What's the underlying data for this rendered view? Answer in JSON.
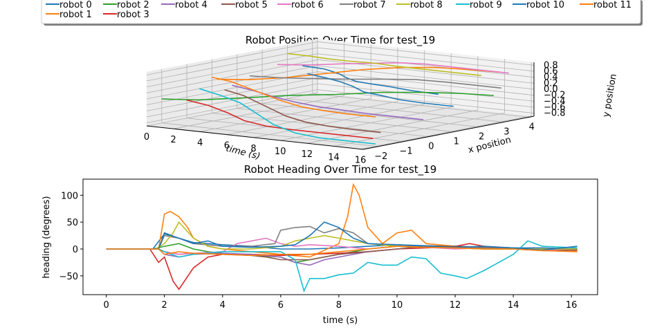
{
  "legend": {
    "entries": [
      {
        "label": "robot 0",
        "color": "#1f77b4"
      },
      {
        "label": "robot 1",
        "color": "#ff7f0e"
      },
      {
        "label": "robot 2",
        "color": "#2ca02c"
      },
      {
        "label": "robot 3",
        "color": "#d62728"
      },
      {
        "label": "robot 4",
        "color": "#9467bd"
      },
      {
        "label": "robot 5",
        "color": "#8c564b"
      },
      {
        "label": "robot 6",
        "color": "#e377c2"
      },
      {
        "label": "robot 7",
        "color": "#7f7f7f"
      },
      {
        "label": "robot 8",
        "color": "#bcbd22"
      },
      {
        "label": "robot 9",
        "color": "#17becf"
      },
      {
        "label": "robot 10",
        "color": "#1f77b4"
      },
      {
        "label": "robot 11",
        "color": "#ff7f0e"
      }
    ]
  },
  "chart_data": [
    {
      "type": "line",
      "projection": "3d",
      "title": "Robot Position Over Time for test_19",
      "xlabel": "time (s)",
      "ylabel": "x position",
      "zlabel": "y position",
      "time_ticks": [
        "0",
        "2",
        "4",
        "6",
        "8",
        "10",
        "12",
        "14",
        "16"
      ],
      "x_ticks": [
        "−2",
        "−1",
        "0",
        "1",
        "2",
        "3",
        "4"
      ],
      "y_ticks": [
        "−0.8",
        "−0.6",
        "−0.4",
        "−0.2",
        "0.0",
        "0.2",
        "0.4",
        "0.6",
        "0.8"
      ],
      "time_range": [
        0,
        16.2
      ],
      "x_range": [
        -2.6,
        4.2
      ],
      "y_range": [
        -0.9,
        0.9
      ],
      "grid": true,
      "series": [
        {
          "name": "robot 0",
          "color": "#1f77b4",
          "t": [
            0,
            2,
            4,
            6,
            8,
            10,
            12,
            14,
            16.2
          ],
          "x": [
            3.6,
            3.4,
            2.9,
            2.2,
            1.5,
            1.0,
            0.7,
            0.5,
            0.4
          ],
          "y": [
            0.1,
            0.12,
            0.15,
            0.2,
            0.3,
            0.4,
            0.45,
            0.45,
            0.45
          ]
        },
        {
          "name": "robot 1",
          "color": "#ff7f0e",
          "t": [
            0,
            2,
            4,
            6,
            8,
            10,
            12,
            14,
            16.2
          ],
          "x": [
            0.2,
            0.4,
            0.8,
            1.3,
            1.8,
            2.2,
            2.5,
            2.7,
            2.8
          ],
          "y": [
            0.2,
            0.25,
            0.35,
            0.5,
            0.65,
            0.75,
            0.8,
            0.8,
            0.8
          ]
        },
        {
          "name": "robot 2",
          "color": "#2ca02c",
          "t": [
            0,
            2,
            4,
            6,
            8,
            10,
            12,
            14,
            16.2
          ],
          "x": [
            -2.0,
            -1.6,
            -0.9,
            -0.1,
            0.7,
            1.4,
            2.0,
            2.4,
            2.6
          ],
          "y": [
            -0.1,
            -0.1,
            -0.05,
            0.0,
            0.0,
            0.05,
            0.05,
            0.05,
            0.05
          ]
        },
        {
          "name": "robot 3",
          "color": "#d62728",
          "t": [
            0,
            2,
            4,
            6,
            8,
            10,
            12,
            14,
            16.2
          ],
          "x": [
            -1.0,
            -1.2,
            -1.5,
            -1.9,
            -2.1,
            -2.2,
            -2.2,
            -2.2,
            -2.2
          ],
          "y": [
            -0.3,
            -0.35,
            -0.45,
            -0.55,
            -0.6,
            -0.6,
            -0.6,
            -0.6,
            -0.6
          ]
        },
        {
          "name": "robot 4",
          "color": "#9467bd",
          "t": [
            0,
            2,
            4,
            6,
            8,
            10,
            12,
            14,
            16.2
          ],
          "x": [
            0.8,
            0.6,
            0.3,
            0.1,
            0.0,
            -0.1,
            -0.2,
            -0.2,
            -0.2
          ],
          "y": [
            -0.1,
            -0.15,
            -0.2,
            -0.25,
            -0.3,
            -0.3,
            -0.3,
            -0.3,
            -0.3
          ]
        },
        {
          "name": "robot 5",
          "color": "#8c564b",
          "t": [
            0,
            2,
            4,
            6,
            8,
            10,
            12,
            14,
            16.2
          ],
          "x": [
            0.5,
            0.2,
            -0.3,
            -0.8,
            -1.3,
            -1.6,
            -1.8,
            -1.9,
            -1.9
          ],
          "y": [
            -0.2,
            -0.25,
            -0.3,
            -0.35,
            -0.4,
            -0.45,
            -0.45,
            -0.45,
            -0.45
          ]
        },
        {
          "name": "robot 6",
          "color": "#e377c2",
          "t": [
            0,
            2,
            4,
            6,
            8,
            10,
            12,
            14,
            16.2
          ],
          "x": [
            2.6,
            2.8,
            3.0,
            3.1,
            3.2,
            3.2,
            3.2,
            3.2,
            3.2
          ],
          "y": [
            0.3,
            0.35,
            0.45,
            0.55,
            0.65,
            0.7,
            0.7,
            0.7,
            0.7
          ]
        },
        {
          "name": "robot 7",
          "color": "#7f7f7f",
          "t": [
            0,
            2,
            4,
            6,
            8,
            10,
            12,
            14,
            16.2
          ],
          "x": [
            1.5,
            1.7,
            2.0,
            2.3,
            2.6,
            2.8,
            2.9,
            2.9,
            2.9
          ],
          "y": [
            0.1,
            0.1,
            0.12,
            0.15,
            0.2,
            0.25,
            0.25,
            0.25,
            0.25
          ]
        },
        {
          "name": "robot 8",
          "color": "#bcbd22",
          "t": [
            0,
            2,
            4,
            6,
            8,
            10,
            12,
            14,
            16.2
          ],
          "x": [
            3.0,
            2.8,
            2.5,
            2.3,
            2.2,
            2.1,
            2.1,
            2.1,
            2.1
          ],
          "y": [
            0.6,
            0.65,
            0.7,
            0.75,
            0.8,
            0.8,
            0.8,
            0.8,
            0.8
          ]
        },
        {
          "name": "robot 9",
          "color": "#17becf",
          "t": [
            0,
            2,
            4,
            6,
            8,
            10,
            12,
            14,
            16.2
          ],
          "x": [
            -0.5,
            -0.7,
            -1.0,
            -1.4,
            -1.8,
            -2.0,
            -2.1,
            -2.1,
            -2.1
          ],
          "y": [
            0.0,
            -0.1,
            -0.2,
            -0.4,
            -0.6,
            -0.75,
            -0.8,
            -0.8,
            -0.8
          ]
        },
        {
          "name": "robot 10",
          "color": "#1f77b4",
          "t": [
            0,
            2,
            4,
            6,
            8,
            10,
            12,
            14,
            16.2
          ],
          "x": [
            3.8,
            3.5,
            3.0,
            2.4,
            1.8,
            1.4,
            1.1,
            1.0,
            1.0
          ],
          "y": [
            -0.2,
            -0.2,
            -0.15,
            -0.1,
            -0.1,
            -0.05,
            -0.05,
            -0.05,
            -0.05
          ]
        },
        {
          "name": "robot 11",
          "color": "#ff7f0e",
          "t": [
            0,
            2,
            4,
            6,
            8,
            10,
            12,
            14,
            16.2
          ],
          "x": [
            0.0,
            -0.3,
            -0.7,
            -1.1,
            -1.5,
            -1.8,
            -2.0,
            -2.1,
            -2.1
          ],
          "y": [
            0.3,
            0.3,
            0.25,
            0.2,
            0.15,
            0.1,
            0.1,
            0.1,
            0.1
          ]
        }
      ]
    },
    {
      "type": "line",
      "title": "Robot Heading Over Time for test_19",
      "xlabel": "time (s)",
      "ylabel": "heading (degrees)",
      "xlim": [
        -0.8,
        16.9
      ],
      "ylim": [
        -85,
        130
      ],
      "xticks": [
        0,
        2,
        4,
        6,
        8,
        10,
        12,
        14,
        16
      ],
      "yticks": [
        -50,
        0,
        50,
        100
      ],
      "grid": false,
      "series": [
        {
          "name": "robot 0",
          "color": "#1f77b4",
          "x": [
            0,
            1.6,
            2.0,
            2.5,
            3.0,
            3.5,
            4.0,
            5.0,
            6.0,
            7.0,
            8.0,
            9.0,
            10.0,
            11.0,
            12.0,
            13.0,
            14.0,
            15.0,
            16.2
          ],
          "y": [
            0,
            0,
            28,
            20,
            12,
            10,
            8,
            5,
            0,
            0,
            2,
            5,
            8,
            6,
            5,
            3,
            2,
            2,
            0
          ]
        },
        {
          "name": "robot 1",
          "color": "#ff7f0e",
          "x": [
            0,
            1.8,
            2.0,
            2.2,
            2.5,
            2.8,
            3.0,
            3.5,
            4.0,
            5.0,
            6.0,
            7.0,
            8.0,
            8.3,
            8.5,
            8.7,
            9.0,
            9.5,
            10.0,
            10.5,
            11.0,
            12.0,
            13.0,
            14.0,
            15.0,
            16.2
          ],
          "y": [
            0,
            0,
            65,
            70,
            60,
            40,
            20,
            5,
            0,
            -5,
            -10,
            -15,
            10,
            60,
            120,
            100,
            40,
            10,
            30,
            35,
            10,
            5,
            0,
            0,
            -2,
            -3
          ]
        },
        {
          "name": "robot 2",
          "color": "#2ca02c",
          "x": [
            0,
            1.6,
            2.0,
            2.5,
            3.0,
            3.5,
            4.0,
            5.0,
            6.0,
            6.5,
            7.0,
            8.0,
            9.0,
            10.0,
            11.0,
            12.0,
            13.0,
            14.0,
            15.0,
            16.2
          ],
          "y": [
            0,
            0,
            5,
            10,
            0,
            -5,
            -8,
            -12,
            -15,
            -25,
            -20,
            -10,
            0,
            5,
            3,
            2,
            0,
            0,
            -2,
            0
          ]
        },
        {
          "name": "robot 3",
          "color": "#d62728",
          "x": [
            0,
            1.5,
            1.8,
            2.0,
            2.3,
            2.5,
            3.0,
            3.5,
            4.0,
            5.0,
            6.0,
            7.0,
            8.0,
            9.0,
            10.0,
            11.0,
            12.0,
            12.5,
            13.0,
            14.0,
            15.0,
            16.2
          ],
          "y": [
            0,
            0,
            -25,
            -15,
            -60,
            -75,
            -35,
            -15,
            -10,
            -10,
            -12,
            -10,
            -8,
            -5,
            0,
            2,
            5,
            10,
            5,
            0,
            -2,
            0
          ]
        },
        {
          "name": "robot 4",
          "color": "#9467bd",
          "x": [
            0,
            1.8,
            2.0,
            2.5,
            3.0,
            4.0,
            5.0,
            6.0,
            6.5,
            7.0,
            7.5,
            8.0,
            9.0,
            10.0,
            11.0,
            12.0,
            13.0,
            14.0,
            15.0,
            16.2
          ],
          "y": [
            0,
            0,
            -10,
            -15,
            -10,
            -8,
            -10,
            -15,
            -25,
            -30,
            -20,
            -15,
            -5,
            0,
            5,
            3,
            2,
            0,
            0,
            -2
          ]
        },
        {
          "name": "robot 5",
          "color": "#8c564b",
          "x": [
            0,
            1.8,
            2.0,
            2.5,
            3.0,
            4.0,
            5.0,
            5.5,
            6.0,
            7.0,
            8.0,
            9.0,
            10.0,
            11.0,
            12.0,
            13.0,
            14.0,
            15.0,
            16.2
          ],
          "y": [
            0,
            0,
            -5,
            -10,
            -8,
            -10,
            -12,
            -15,
            -20,
            -20,
            -10,
            -5,
            0,
            5,
            5,
            3,
            0,
            -3,
            -2
          ]
        },
        {
          "name": "robot 6",
          "color": "#e377c2",
          "x": [
            0,
            1.8,
            2.0,
            2.5,
            3.0,
            4.0,
            4.5,
            5.0,
            5.5,
            6.0,
            6.5,
            7.0,
            8.0,
            9.0,
            10.0,
            11.0,
            12.0,
            13.0,
            14.0,
            15.0,
            16.2
          ],
          "y": [
            0,
            0,
            -5,
            -10,
            -8,
            -5,
            10,
            15,
            20,
            10,
            5,
            8,
            5,
            0,
            5,
            3,
            0,
            2,
            0,
            -2,
            0
          ]
        },
        {
          "name": "robot 7",
          "color": "#7f7f7f",
          "x": [
            0,
            1.8,
            2.0,
            2.5,
            3.0,
            4.0,
            5.0,
            5.8,
            6.0,
            6.5,
            7.0,
            7.5,
            8.0,
            8.5,
            9.0,
            10.0,
            11.0,
            12.0,
            13.0,
            14.0,
            15.0,
            16.2
          ],
          "y": [
            0,
            0,
            25,
            20,
            10,
            5,
            5,
            10,
            35,
            40,
            42,
            30,
            38,
            30,
            10,
            5,
            5,
            3,
            2,
            0,
            0,
            0
          ]
        },
        {
          "name": "robot 8",
          "color": "#bcbd22",
          "x": [
            0,
            1.7,
            2.0,
            2.3,
            2.5,
            3.0,
            3.5,
            4.0,
            5.0,
            6.0,
            6.5,
            7.0,
            7.5,
            8.0,
            9.0,
            10.0,
            11.0,
            12.0,
            13.0,
            14.0,
            15.0,
            16.2
          ],
          "y": [
            0,
            0,
            10,
            30,
            50,
            20,
            5,
            0,
            0,
            5,
            15,
            20,
            25,
            20,
            10,
            5,
            3,
            2,
            0,
            0,
            0,
            0
          ]
        },
        {
          "name": "robot 9",
          "color": "#17becf",
          "x": [
            0,
            1.8,
            2.0,
            2.5,
            3.0,
            4.0,
            5.0,
            6.0,
            6.5,
            6.8,
            7.0,
            7.5,
            8.0,
            8.5,
            9.0,
            9.5,
            10.0,
            10.5,
            11.0,
            11.5,
            12.0,
            12.4,
            13.0,
            13.5,
            14.0,
            14.5,
            15.0,
            16.2
          ],
          "y": [
            0,
            0,
            -5,
            -15,
            -10,
            -5,
            -5,
            -5,
            -20,
            -78,
            -55,
            -55,
            -48,
            -45,
            -25,
            -30,
            -30,
            -15,
            -18,
            -45,
            -50,
            -55,
            -40,
            -25,
            -10,
            15,
            5,
            2
          ]
        },
        {
          "name": "robot 10",
          "color": "#1f77b4",
          "x": [
            0,
            1.8,
            2.0,
            2.5,
            3.0,
            3.5,
            4.0,
            5.0,
            6.0,
            6.5,
            7.0,
            7.5,
            8.0,
            8.5,
            9.0,
            10.0,
            11.0,
            12.0,
            13.0,
            14.0,
            15.0,
            16.2
          ],
          "y": [
            0,
            0,
            30,
            20,
            10,
            15,
            5,
            3,
            5,
            8,
            25,
            50,
            40,
            20,
            10,
            8,
            5,
            3,
            5,
            2,
            -2,
            5
          ]
        },
        {
          "name": "robot 11",
          "color": "#ff7f0e",
          "x": [
            0,
            1.8,
            2.0,
            2.5,
            3.0,
            4.0,
            5.0,
            6.0,
            7.0,
            8.0,
            9.0,
            10.0,
            11.0,
            12.0,
            13.0,
            14.0,
            15.0,
            16.2
          ],
          "y": [
            0,
            0,
            -10,
            -5,
            -8,
            -10,
            -12,
            -10,
            -10,
            -5,
            0,
            5,
            3,
            2,
            0,
            0,
            -3,
            -5
          ]
        }
      ]
    }
  ]
}
